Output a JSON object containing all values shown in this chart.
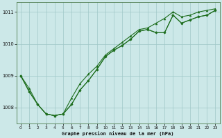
{
  "title": "Graphe pression niveau de la mer (hPa)",
  "bg_color": "#cce8e8",
  "line_color": "#1e6e1e",
  "grid_color": "#a0c8c8",
  "ylim": [
    1007.5,
    1011.3
  ],
  "xlim": [
    -0.5,
    23.5
  ],
  "yticks": [
    1008,
    1009,
    1010,
    1011
  ],
  "xticks": [
    0,
    1,
    2,
    3,
    4,
    5,
    6,
    7,
    8,
    9,
    10,
    11,
    12,
    13,
    14,
    15,
    16,
    17,
    18,
    19,
    20,
    21,
    22,
    23
  ],
  "series1": {
    "x": [
      0,
      1,
      2,
      3,
      4,
      5,
      6,
      7,
      8,
      9,
      10,
      11,
      12,
      13,
      14,
      15,
      16,
      17,
      18,
      19,
      20,
      21,
      22,
      23
    ],
    "y": [
      1009.0,
      1008.6,
      1008.1,
      1007.8,
      1007.75,
      1007.8,
      1008.3,
      1008.75,
      1009.05,
      1009.3,
      1009.65,
      1009.85,
      1010.05,
      1010.25,
      1010.45,
      1010.5,
      1010.65,
      1010.8,
      1011.0,
      1010.85,
      1010.9,
      1011.0,
      1011.05,
      1011.1
    ]
  },
  "series2": {
    "x": [
      0,
      1,
      2,
      3,
      4,
      5,
      6,
      7,
      8,
      9,
      10,
      11,
      12,
      13,
      14,
      15,
      16,
      17,
      18,
      19,
      20,
      21,
      22,
      23
    ],
    "y": [
      1009.0,
      1008.5,
      1008.1,
      1007.8,
      1007.75,
      1007.8,
      1008.1,
      1008.55,
      1008.85,
      1009.2,
      1009.6,
      1009.8,
      1009.95,
      1010.15,
      1010.4,
      1010.45,
      1010.35,
      1010.35,
      1010.9,
      1010.65,
      1010.75,
      1010.85,
      1010.9,
      1011.05
    ]
  },
  "series3": {
    "x": [
      0,
      1,
      2,
      3,
      4,
      5,
      6,
      7,
      8,
      9,
      10,
      11,
      12,
      13,
      14,
      15,
      16,
      17,
      18,
      19,
      20,
      21,
      22,
      23
    ],
    "y": [
      1009.0,
      1008.5,
      1008.1,
      1007.8,
      1007.75,
      1007.8,
      1008.1,
      1008.55,
      1008.85,
      1009.2,
      1009.6,
      1009.8,
      1009.95,
      1010.15,
      1010.4,
      1010.45,
      1010.35,
      1010.35,
      1010.9,
      1010.65,
      1010.75,
      1010.85,
      1010.9,
      1011.05
    ]
  }
}
